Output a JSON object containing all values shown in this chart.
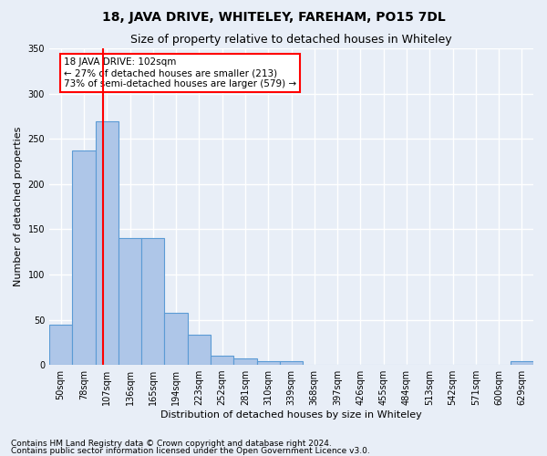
{
  "title": "18, JAVA DRIVE, WHITELEY, FAREHAM, PO15 7DL",
  "subtitle": "Size of property relative to detached houses in Whiteley",
  "xlabel": "Distribution of detached houses by size in Whiteley",
  "ylabel": "Number of detached properties",
  "footnote1": "Contains HM Land Registry data © Crown copyright and database right 2024.",
  "footnote2": "Contains public sector information licensed under the Open Government Licence v3.0.",
  "bar_labels": [
    "50sqm",
    "78sqm",
    "107sqm",
    "136sqm",
    "165sqm",
    "194sqm",
    "223sqm",
    "252sqm",
    "281sqm",
    "310sqm",
    "339sqm",
    "368sqm",
    "397sqm",
    "426sqm",
    "455sqm",
    "484sqm",
    "513sqm",
    "542sqm",
    "571sqm",
    "600sqm",
    "629sqm"
  ],
  "bar_values": [
    44,
    237,
    269,
    140,
    140,
    58,
    33,
    10,
    7,
    4,
    4,
    0,
    0,
    0,
    0,
    0,
    0,
    0,
    0,
    0,
    4
  ],
  "bar_color": "#aec6e8",
  "bar_edge_color": "#5b9bd5",
  "vline_x": 1.83,
  "annotation_text": "18 JAVA DRIVE: 102sqm\n← 27% of detached houses are smaller (213)\n73% of semi-detached houses are larger (579) →",
  "annotation_box_color": "white",
  "annotation_box_edge_color": "red",
  "vline_color": "red",
  "ylim": [
    0,
    350
  ],
  "yticks": [
    0,
    50,
    100,
    150,
    200,
    250,
    300,
    350
  ],
  "background_color": "#e8eef7",
  "grid_color": "white",
  "title_fontsize": 10,
  "subtitle_fontsize": 9,
  "axis_label_fontsize": 8,
  "tick_fontsize": 7,
  "footnote_fontsize": 6.5
}
